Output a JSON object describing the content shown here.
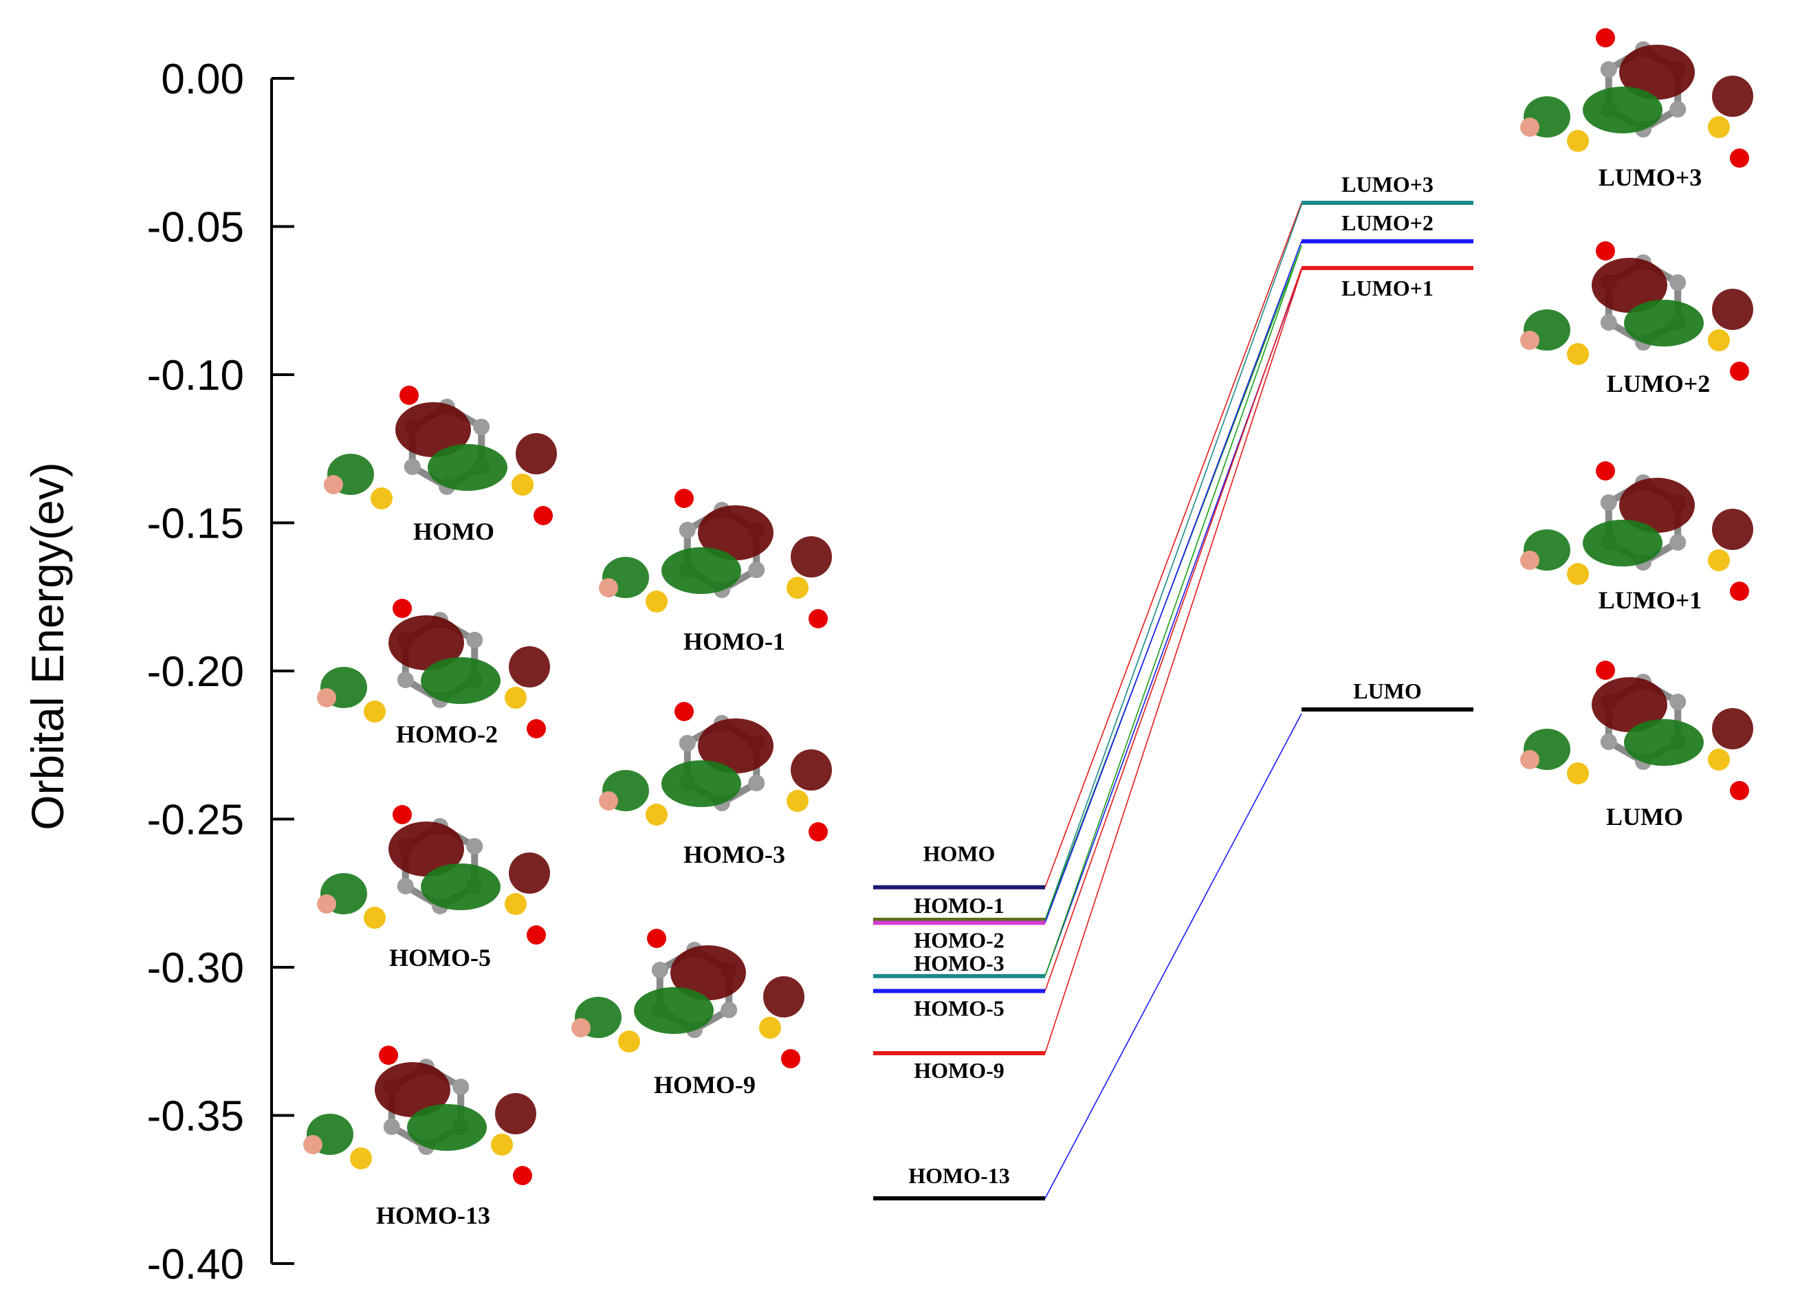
{
  "chart_data": {
    "type": "energy-level diagram",
    "ylabel": "Orbital Energy(ev)",
    "ylim": [
      -0.4,
      0.0
    ],
    "yticks": [
      "0.00",
      "-0.05",
      "-0.10",
      "-0.15",
      "-0.20",
      "-0.25",
      "-0.30",
      "-0.35",
      "-0.40"
    ],
    "occupied": [
      {
        "name": "HOMO",
        "energy": -0.273,
        "color": "#1a1a6e"
      },
      {
        "name": "HOMO-1",
        "energy": -0.284,
        "color": "#5a6e1a"
      },
      {
        "name": "HOMO-2",
        "energy": -0.285,
        "color": "#d23cd2"
      },
      {
        "name": "HOMO-3",
        "energy": -0.303,
        "color": "#1a8a8a"
      },
      {
        "name": "HOMO-5",
        "energy": -0.308,
        "color": "#1a1aff"
      },
      {
        "name": "HOMO-9",
        "energy": -0.329,
        "color": "#e61a1a"
      },
      {
        "name": "HOMO-13",
        "energy": -0.378,
        "color": "#000000"
      }
    ],
    "virtual": [
      {
        "name": "LUMO+3",
        "energy": -0.042,
        "color": "#1a8a8a"
      },
      {
        "name": "LUMO+2",
        "energy": -0.055,
        "color": "#1a1aff"
      },
      {
        "name": "LUMO+1",
        "energy": -0.064,
        "color": "#e61a1a"
      },
      {
        "name": "LUMO",
        "energy": -0.213,
        "color": "#000000"
      }
    ],
    "transitions": [
      {
        "from": "HOMO",
        "to": "LUMO+3",
        "color": "#e61a1a"
      },
      {
        "from": "HOMO-1",
        "to": "LUMO+3",
        "color": "#1a8a8a"
      },
      {
        "from": "HOMO-1",
        "to": "LUMO+2",
        "color": "#1aa01a"
      },
      {
        "from": "HOMO-2",
        "to": "LUMO+2",
        "color": "#1a1aff"
      },
      {
        "from": "HOMO-3",
        "to": "LUMO+1",
        "color": "#1a1aff"
      },
      {
        "from": "HOMO-3",
        "to": "LUMO+2",
        "color": "#1aa01a"
      },
      {
        "from": "HOMO-5",
        "to": "LUMO+1",
        "color": "#e61a1a"
      },
      {
        "from": "HOMO-9",
        "to": "LUMO+1",
        "color": "#e61a1a"
      },
      {
        "from": "HOMO-13",
        "to": "LUMO",
        "color": "#1a1aff"
      }
    ],
    "orbital_images": [
      "HOMO",
      "HOMO-1",
      "HOMO-2",
      "HOMO-3",
      "HOMO-5",
      "HOMO-9",
      "HOMO-13",
      "LUMO+3",
      "LUMO+2",
      "LUMO+1",
      "LUMO"
    ]
  }
}
